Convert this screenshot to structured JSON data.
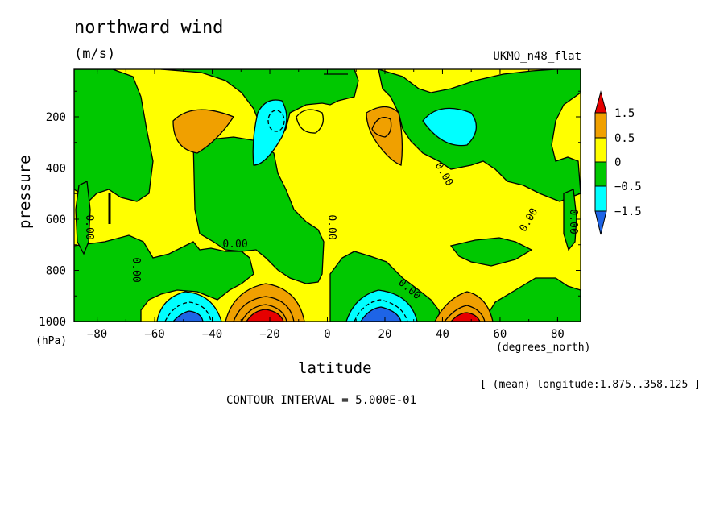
{
  "chart_data": {
    "type": "heatmap",
    "title": "northward wind",
    "units": "(m/s)",
    "model": "UKMO_n48_flat",
    "xlabel": "latitude",
    "xunits": "(degrees_north)",
    "ylabel": "pressure",
    "yunits": "(hPa)",
    "xlim": [
      -88,
      88
    ],
    "ylim": [
      1000,
      20
    ],
    "x_ticks": [
      -80,
      -60,
      -40,
      -20,
      0,
      20,
      40,
      60,
      80
    ],
    "y_ticks": [
      200,
      400,
      600,
      800,
      1000
    ],
    "levels": [
      -1.5,
      -0.5,
      0,
      0.5,
      1.5
    ],
    "legend_labels": [
      "1.5",
      "0.5",
      "0",
      "-0.5",
      "-1.5"
    ],
    "colors": {
      "lt_-1.5": "#1e64e6",
      "-1.5_-0.5": "#00ffff",
      "-0.5_0": "#00c800",
      "0_0.5": "#ffff00",
      "0.5_1.5": "#f0a000",
      "gt_1.5": "#e60000"
    },
    "contour_labels": [
      "0.00",
      "0.00",
      "0.00",
      "0.00",
      "0.00",
      "0.00",
      "0.00",
      "0.00"
    ],
    "features": [
      {
        "lat": -47,
        "p": 1000,
        "value": -2.0
      },
      {
        "lat": -21,
        "p": 1000,
        "value": 3.0
      },
      {
        "lat": 21,
        "p": 1000,
        "value": -3.0
      },
      {
        "lat": 47,
        "p": 1000,
        "value": 2.0
      },
      {
        "lat": -43,
        "p": 230,
        "value": 0.8
      },
      {
        "lat": -19,
        "p": 220,
        "value": -0.9
      },
      {
        "lat": 20,
        "p": 220,
        "value": 1.0
      },
      {
        "lat": 43,
        "p": 240,
        "value": -0.8
      }
    ],
    "footnote": "[ (mean) longitude:1.875..358.125 ]",
    "contour_interval": "CONTOUR INTERVAL = 5.000E-01"
  }
}
